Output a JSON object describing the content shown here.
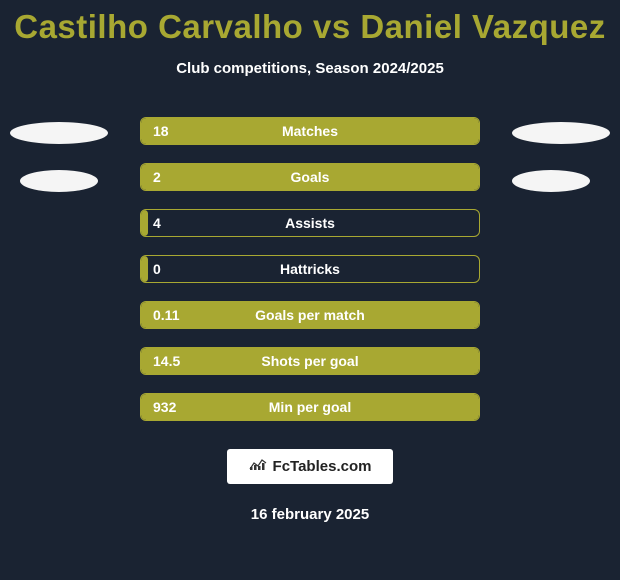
{
  "title": "Castilho Carvalho vs Daniel Vazquez",
  "subtitle": "Club competitions, Season 2024/2025",
  "colors": {
    "background": "#1a2332",
    "accent": "#a8a832",
    "text": "#ffffff",
    "ellipse": "#f5f5f5",
    "brand_bg": "#ffffff",
    "brand_text": "#222222"
  },
  "stats": [
    {
      "value": "18",
      "label": "Matches",
      "fill_pct": 100
    },
    {
      "value": "2",
      "label": "Goals",
      "fill_pct": 100
    },
    {
      "value": "4",
      "label": "Assists",
      "fill_pct": 2
    },
    {
      "value": "0",
      "label": "Hattricks",
      "fill_pct": 2
    },
    {
      "value": "0.11",
      "label": "Goals per match",
      "fill_pct": 100
    },
    {
      "value": "14.5",
      "label": "Shots per goal",
      "fill_pct": 100
    },
    {
      "value": "932",
      "label": "Min per goal",
      "fill_pct": 100
    }
  ],
  "branding": {
    "text": "FcTables.com"
  },
  "date": "16 february 2025"
}
